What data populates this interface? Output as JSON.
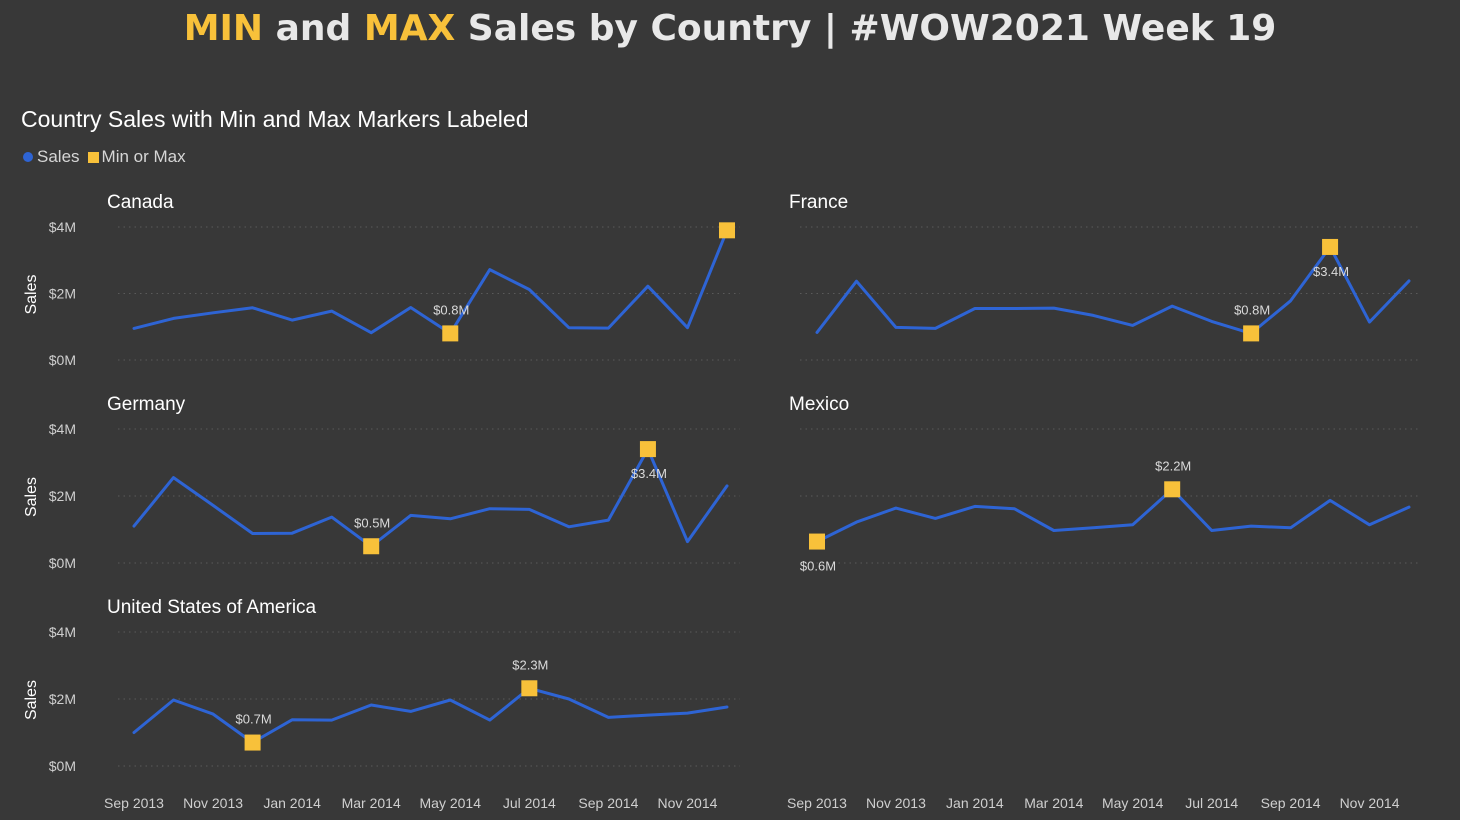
{
  "title": {
    "part1": "MIN",
    "part2": " and ",
    "part3": "MAX",
    "part4": " Sales by Country | #WOW2021 Week 19"
  },
  "subtitle": "Country Sales with Min and Max Markers Labeled",
  "legend": {
    "sales_label": "Sales",
    "minmax_label": "Min or Max",
    "sales_color": "#2E64D4",
    "minmax_color": "#F8C13A"
  },
  "chart_data": {
    "type": "line",
    "x": [
      "Sep 2013",
      "Oct 2013",
      "Nov 2013",
      "Dec 2013",
      "Jan 2014",
      "Feb 2014",
      "Mar 2014",
      "Apr 2014",
      "May 2014",
      "Jun 2014",
      "Jul 2014",
      "Aug 2014",
      "Sep 2014",
      "Oct 2014",
      "Nov 2014",
      "Dec 2014"
    ],
    "x_tick_labels": [
      "Sep 2013",
      "Nov 2013",
      "Jan 2014",
      "Mar 2014",
      "May 2014",
      "Jul 2014",
      "Sep 2014",
      "Nov 2014"
    ],
    "ylabel": "Sales",
    "y_ticks": [
      "$0M",
      "$2M",
      "$4M"
    ],
    "y_tick_values": [
      0,
      2,
      4
    ],
    "ylim": [
      0,
      4
    ],
    "unit": "$M",
    "grid": true,
    "legend_position": "top-left",
    "panels": [
      {
        "country": "Canada",
        "values": [
          0.95,
          1.25,
          1.42,
          1.57,
          1.2,
          1.47,
          0.82,
          1.58,
          0.8,
          2.72,
          2.12,
          0.97,
          0.96,
          2.22,
          0.97,
          3.9
        ],
        "markers": [
          {
            "index": 8,
            "label": "$0.8M",
            "label_pos": "above"
          },
          {
            "index": 15,
            "label": "",
            "label_pos": "above"
          }
        ]
      },
      {
        "country": "France",
        "values": [
          0.83,
          2.37,
          0.98,
          0.95,
          1.55,
          1.55,
          1.56,
          1.34,
          1.04,
          1.62,
          1.16,
          0.8,
          1.78,
          3.4,
          1.14,
          2.38
        ],
        "markers": [
          {
            "index": 11,
            "label": "$0.8M",
            "label_pos": "above"
          },
          {
            "index": 13,
            "label": "$3.4M",
            "label_pos": "below"
          }
        ]
      },
      {
        "country": "Germany",
        "values": [
          1.1,
          2.55,
          1.72,
          0.88,
          0.89,
          1.37,
          0.5,
          1.42,
          1.32,
          1.62,
          1.6,
          1.08,
          1.28,
          3.4,
          0.64,
          2.3
        ],
        "markers": [
          {
            "index": 6,
            "label": "$0.5M",
            "label_pos": "above"
          },
          {
            "index": 13,
            "label": "$3.4M",
            "label_pos": "below"
          }
        ]
      },
      {
        "country": "Mexico",
        "values": [
          0.64,
          1.22,
          1.64,
          1.33,
          1.69,
          1.62,
          0.97,
          1.05,
          1.14,
          2.2,
          0.97,
          1.1,
          1.05,
          1.87,
          1.14,
          1.67
        ],
        "markers": [
          {
            "index": 0,
            "label": "$0.6M",
            "label_pos": "below"
          },
          {
            "index": 9,
            "label": "$2.2M",
            "label_pos": "above"
          }
        ]
      },
      {
        "country": "United States of America",
        "values": [
          1.0,
          1.97,
          1.55,
          0.7,
          1.38,
          1.37,
          1.82,
          1.63,
          1.97,
          1.37,
          2.32,
          2.0,
          1.45,
          1.52,
          1.58,
          1.76
        ],
        "markers": [
          {
            "index": 3,
            "label": "$0.7M",
            "label_pos": "above"
          },
          {
            "index": 10,
            "label": "$2.3M",
            "label_pos": "above"
          }
        ]
      }
    ]
  }
}
